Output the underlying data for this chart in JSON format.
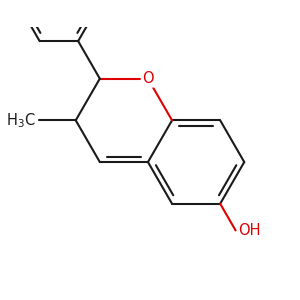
{
  "bg_color": "#ffffff",
  "bond_color": "#1a1a1a",
  "o_color": "#e00000",
  "lw": 1.5,
  "dbo": 0.055,
  "fs": 10.5
}
